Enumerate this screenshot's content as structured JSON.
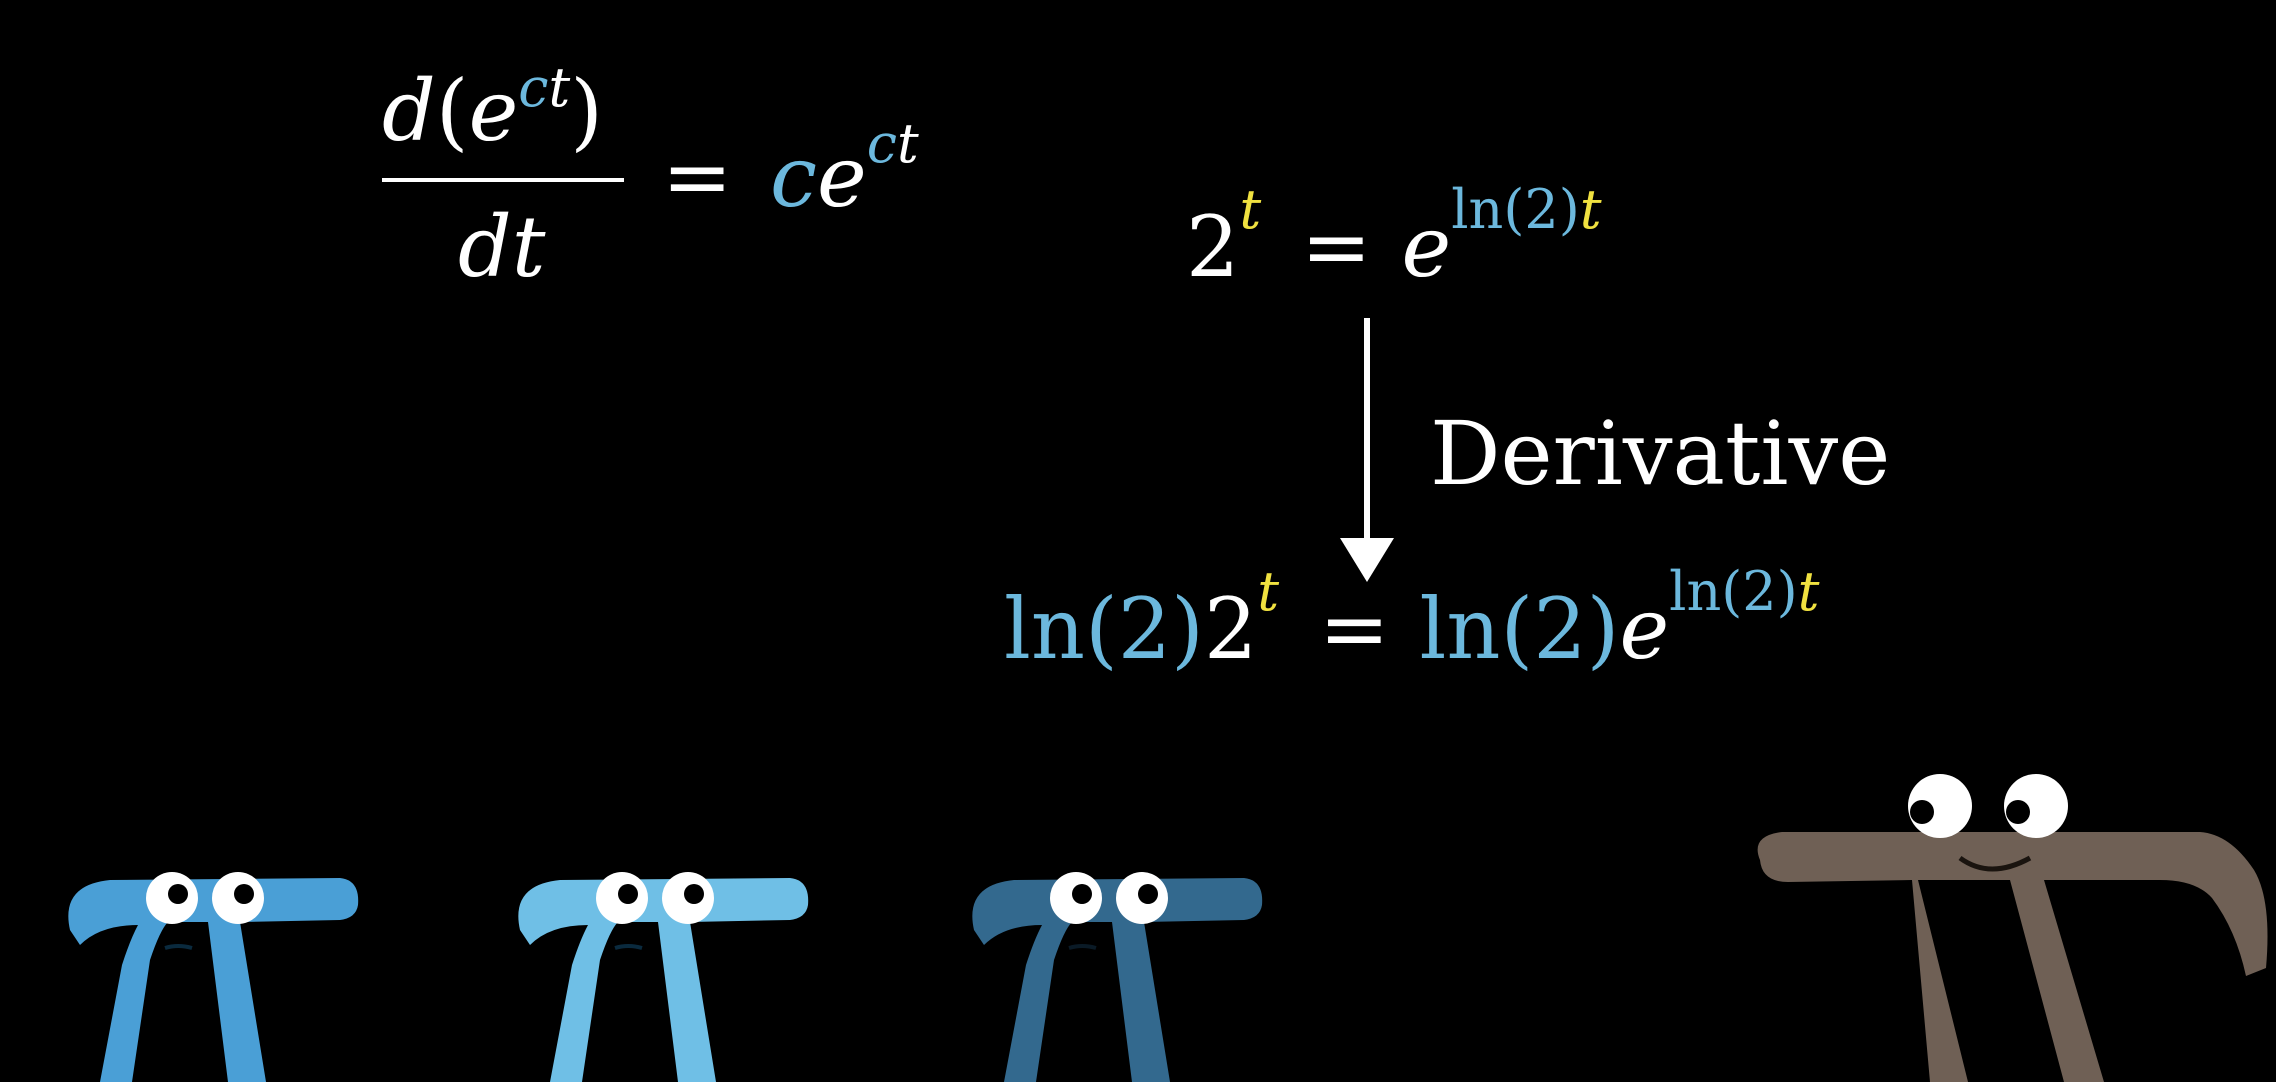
{
  "colors": {
    "background": "#000000",
    "text": "#ffffff",
    "blue": "#6cb8dd",
    "yellow": "#f0e140",
    "pi_blue_1": "#4a9fd6",
    "pi_blue_2": "#6fbfe6",
    "pi_blue_3": "#33698e",
    "pi_brown": "#6f6055"
  },
  "formula1": {
    "numerator": {
      "d": "d",
      "open": "(",
      "e": "e",
      "c": "c",
      "t": "t",
      "close": ")"
    },
    "denominator": "dt",
    "equals": "=",
    "rhs": {
      "c": "c",
      "e": "e",
      "exp_c": "c",
      "exp_t": "t"
    }
  },
  "formula2": {
    "base": "2",
    "exp": "t",
    "equals": "=",
    "e": "e",
    "exp_ln": "ln(2)",
    "exp_t": "t"
  },
  "arrow_label": "Derivative",
  "formula3": {
    "ln_left": "ln(2)",
    "base": "2",
    "exp": "t",
    "equals": "=",
    "ln_right": "ln(2)",
    "e": "e",
    "exp_ln": "ln(2)",
    "exp_t": "t"
  },
  "characters": [
    {
      "name": "pi-creature-blue-1",
      "color": "pi_blue_1",
      "mood": "looking-up"
    },
    {
      "name": "pi-creature-blue-2",
      "color": "pi_blue_2",
      "mood": "looking-up"
    },
    {
      "name": "pi-creature-blue-3",
      "color": "pi_blue_3",
      "mood": "looking-up"
    },
    {
      "name": "pi-creature-brown",
      "color": "pi_brown",
      "mood": "smiling"
    }
  ]
}
